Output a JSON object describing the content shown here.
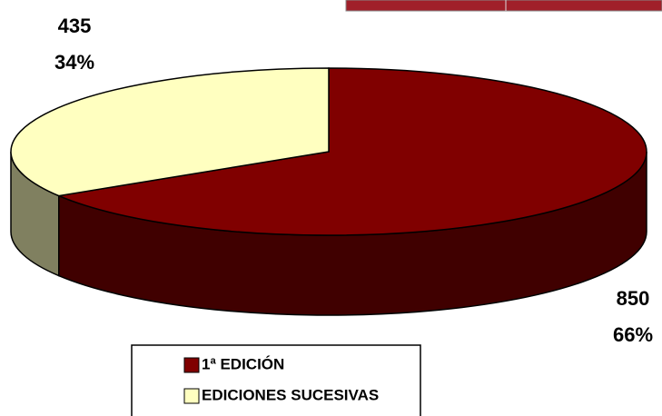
{
  "chart_data": {
    "type": "pie",
    "categories": [
      "1ª EDICIÓN",
      "EDICIONES SUCESIVAS"
    ],
    "values": [
      850,
      435
    ],
    "percent_labels": [
      "66%",
      "34%"
    ],
    "colors": [
      "#800000",
      "#ffffc0"
    ],
    "legend": "bottom"
  }
}
